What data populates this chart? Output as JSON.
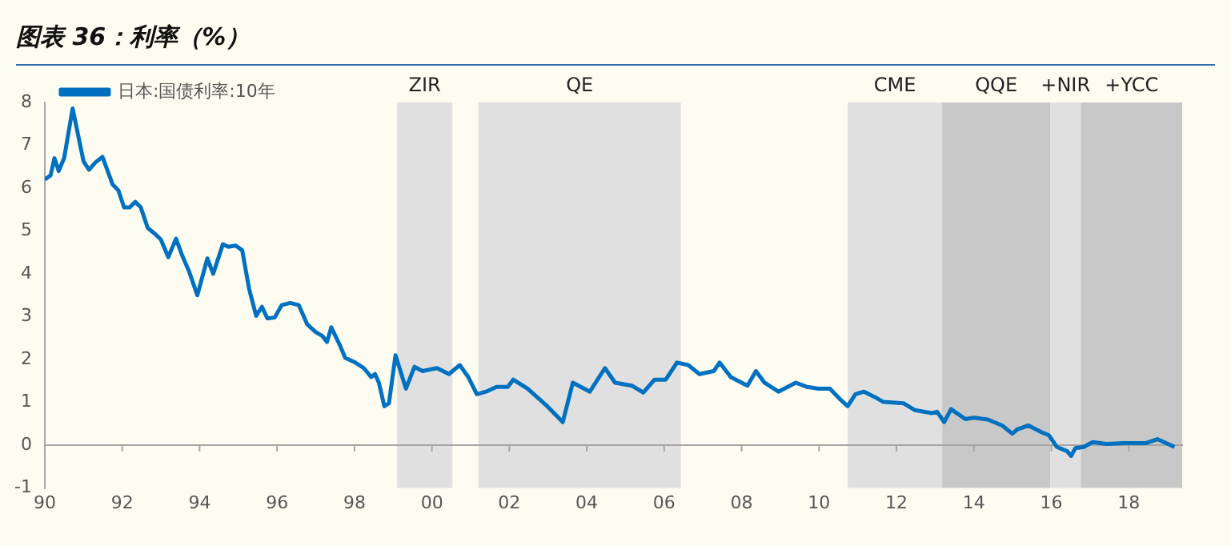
{
  "chart_data": {
    "type": "line",
    "title": "图表 36：利率（%）",
    "x": [
      1990.0,
      1990.15,
      1990.25,
      1990.36,
      1990.5,
      1990.72,
      1991.0,
      1991.14,
      1991.31,
      1991.49,
      1991.75,
      1991.9,
      1992.05,
      1992.19,
      1992.34,
      1992.48,
      1992.66,
      1992.85,
      1993.0,
      1993.19,
      1993.39,
      1993.54,
      1993.73,
      1993.94,
      1994.2,
      1994.35,
      1994.6,
      1994.74,
      1994.93,
      1995.1,
      1995.28,
      1995.46,
      1995.61,
      1995.75,
      1995.94,
      1996.12,
      1996.34,
      1996.56,
      1996.78,
      1997.0,
      1997.17,
      1997.29,
      1997.4,
      1997.62,
      1997.76,
      1998.02,
      1998.24,
      1998.43,
      1998.53,
      1998.63,
      1998.77,
      1998.89,
      1999.06,
      1999.33,
      1999.55,
      1999.76,
      2000.13,
      2000.44,
      2000.72,
      2000.94,
      2001.16,
      2001.4,
      2001.67,
      2001.96,
      2002.1,
      2002.47,
      2002.98,
      2003.38,
      2003.64,
      2004.08,
      2004.47,
      2004.73,
      2005.16,
      2005.46,
      2005.75,
      2006.04,
      2006.33,
      2006.62,
      2006.91,
      2007.28,
      2007.43,
      2007.72,
      2008.15,
      2008.37,
      2008.59,
      2008.95,
      2009.4,
      2009.69,
      2009.99,
      2010.28,
      2010.57,
      2010.74,
      2010.94,
      2011.16,
      2011.45,
      2011.66,
      2012.18,
      2012.47,
      2012.91,
      2013.05,
      2013.23,
      2013.41,
      2013.78,
      2014.0,
      2014.36,
      2014.73,
      2014.99,
      2015.12,
      2015.41,
      2015.75,
      2015.94,
      2016.14,
      2016.41,
      2016.51,
      2016.62,
      2016.84,
      2017.06,
      2017.43,
      2017.86,
      2018.45,
      2018.74,
      2019.18
    ],
    "series": [
      {
        "name": "日本:国债利率:10年",
        "color": "#0070c0",
        "values": [
          6.2,
          6.3,
          6.7,
          6.4,
          6.7,
          7.86,
          6.63,
          6.43,
          6.6,
          6.73,
          6.09,
          5.95,
          5.55,
          5.55,
          5.68,
          5.55,
          5.07,
          4.93,
          4.8,
          4.39,
          4.82,
          4.45,
          4.05,
          3.5,
          4.36,
          4.0,
          4.69,
          4.63,
          4.66,
          4.55,
          3.64,
          3.02,
          3.23,
          2.96,
          2.98,
          3.27,
          3.32,
          3.27,
          2.82,
          2.64,
          2.55,
          2.41,
          2.75,
          2.34,
          2.04,
          1.93,
          1.8,
          1.59,
          1.66,
          1.46,
          0.91,
          0.98,
          2.1,
          1.32,
          1.83,
          1.73,
          1.8,
          1.66,
          1.87,
          1.59,
          1.19,
          1.25,
          1.36,
          1.36,
          1.53,
          1.32,
          0.91,
          0.54,
          1.46,
          1.25,
          1.8,
          1.46,
          1.39,
          1.23,
          1.53,
          1.53,
          1.93,
          1.87,
          1.66,
          1.73,
          1.93,
          1.59,
          1.39,
          1.73,
          1.46,
          1.25,
          1.46,
          1.36,
          1.32,
          1.32,
          1.05,
          0.91,
          1.19,
          1.25,
          1.12,
          1.01,
          0.98,
          0.82,
          0.75,
          0.78,
          0.54,
          0.84,
          0.61,
          0.64,
          0.6,
          0.46,
          0.27,
          0.37,
          0.46,
          0.3,
          0.23,
          -0.04,
          -0.14,
          -0.25,
          -0.07,
          -0.04,
          0.07,
          0.03,
          0.05,
          0.05,
          0.14,
          -0.04
        ]
      }
    ],
    "xlim": [
      1990,
      2019.4
    ],
    "xticks": [
      {
        "value": 1990,
        "label": "90"
      },
      {
        "value": 1992,
        "label": "92"
      },
      {
        "value": 1994,
        "label": "94"
      },
      {
        "value": 1996,
        "label": "96"
      },
      {
        "value": 1998,
        "label": "98"
      },
      {
        "value": 2000,
        "label": "00"
      },
      {
        "value": 2002,
        "label": "02"
      },
      {
        "value": 2004,
        "label": "04"
      },
      {
        "value": 2006,
        "label": "06"
      },
      {
        "value": 2008,
        "label": "08"
      },
      {
        "value": 2010,
        "label": "10"
      },
      {
        "value": 2012,
        "label": "12"
      },
      {
        "value": 2014,
        "label": "14"
      },
      {
        "value": 2016,
        "label": "16"
      },
      {
        "value": 2018,
        "label": "18"
      }
    ],
    "ylim": [
      -1,
      8
    ],
    "yticks": [
      -1,
      0,
      1,
      2,
      3,
      4,
      5,
      6,
      7,
      8
    ],
    "bands": [
      {
        "axis": "x",
        "from": 1999.1,
        "to": 2000.53,
        "label": "ZIR",
        "color": "#e0e0e0"
      },
      {
        "axis": "x",
        "from": 2001.2,
        "to": 2006.43,
        "label": "QE",
        "color": "#e0e0e0"
      },
      {
        "axis": "x",
        "from": 2010.74,
        "to": 2013.18,
        "label": "CME",
        "color": "#e0e0e0"
      },
      {
        "axis": "x",
        "from": 2013.18,
        "to": 2015.97,
        "label": "QQE",
        "color": "#c8c8c8"
      },
      {
        "axis": "x",
        "from": 2015.97,
        "to": 2016.76,
        "label": "+NIR",
        "color": "#e0e0e0"
      },
      {
        "axis": "x",
        "from": 2016.76,
        "to": 2019.38,
        "label": "+YCC",
        "color": "#c8c8c8"
      }
    ],
    "ref_lines": [
      {
        "axis": "y",
        "value": 0,
        "color": "#a6a6a6"
      }
    ],
    "legend": "top left",
    "grid": false,
    "marker": "none",
    "line_style": "solid"
  }
}
